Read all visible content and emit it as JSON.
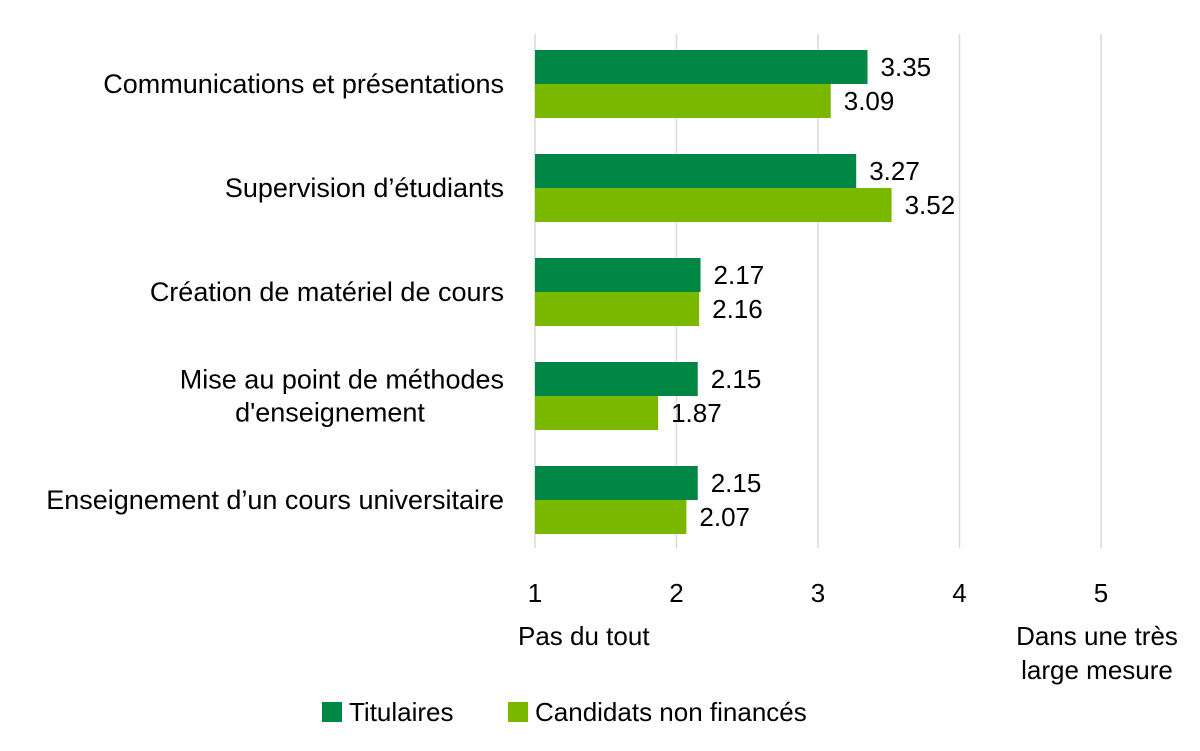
{
  "chart_data": {
    "type": "bar",
    "orientation": "horizontal",
    "categories": [
      [
        "Communications et présentations"
      ],
      [
        "Supervision d’étudiants"
      ],
      [
        "Création de matériel de cours"
      ],
      [
        "Mise au point de méthodes",
        "d'enseignement"
      ],
      [
        "Enseignement d’un cours universitaire"
      ]
    ],
    "series": [
      {
        "name": "Titulaires",
        "color": "#008744",
        "values": [
          3.35,
          3.27,
          2.17,
          2.15,
          2.15
        ]
      },
      {
        "name": "Candidats non financés",
        "color": "#7ab800",
        "values": [
          3.09,
          3.52,
          2.16,
          1.87,
          2.07
        ]
      }
    ],
    "xlim": [
      1,
      5
    ],
    "xticks": [
      1,
      2,
      3,
      4,
      5
    ],
    "scale_labels": {
      "min": [
        "Pas du tout"
      ],
      "max": [
        "Dans une très",
        "large mesure"
      ]
    },
    "gridlines": true,
    "gridline_color": "#d9d9d9",
    "legend_position": "bottom"
  }
}
